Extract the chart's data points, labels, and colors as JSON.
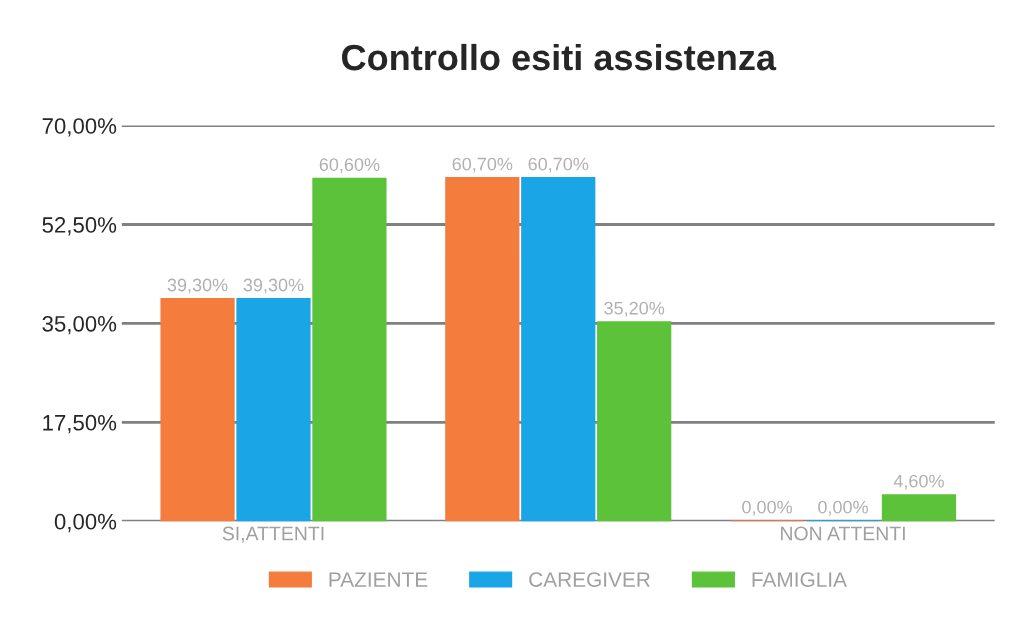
{
  "chart_data": {
    "type": "bar",
    "title": "Controllo esiti assistenza",
    "categories": [
      "SI,ATTENTI",
      null,
      "NON ATTENTI"
    ],
    "series": [
      {
        "name": "PAZIENTE",
        "color": "#f47c3c",
        "values": [
          39.3,
          60.7,
          0
        ],
        "value_labels": [
          "39,30%",
          "60,70%",
          "0,00%"
        ]
      },
      {
        "name": "CAREGIVER",
        "color": "#1aa6e6",
        "values": [
          39.3,
          60.7,
          0
        ],
        "value_labels": [
          "39,30%",
          "60,70%",
          "0,00%"
        ]
      },
      {
        "name": "FAMIGLIA",
        "color": "#5cc23a",
        "values": [
          60.6,
          35.2,
          4.6
        ],
        "value_labels": [
          "60,60%",
          "35,20%",
          "4,60%"
        ]
      }
    ],
    "ylim": [
      0,
      70
    ],
    "yticks": [
      {
        "value": 0,
        "label": "0,00%"
      },
      {
        "value": 17.5,
        "label": "17,50%"
      },
      {
        "value": 35,
        "label": "35,00%"
      },
      {
        "value": 52.5,
        "label": "52,50%"
      },
      {
        "value": 70,
        "label": "70,00%"
      }
    ],
    "grid": "y",
    "legend": "bottom"
  }
}
